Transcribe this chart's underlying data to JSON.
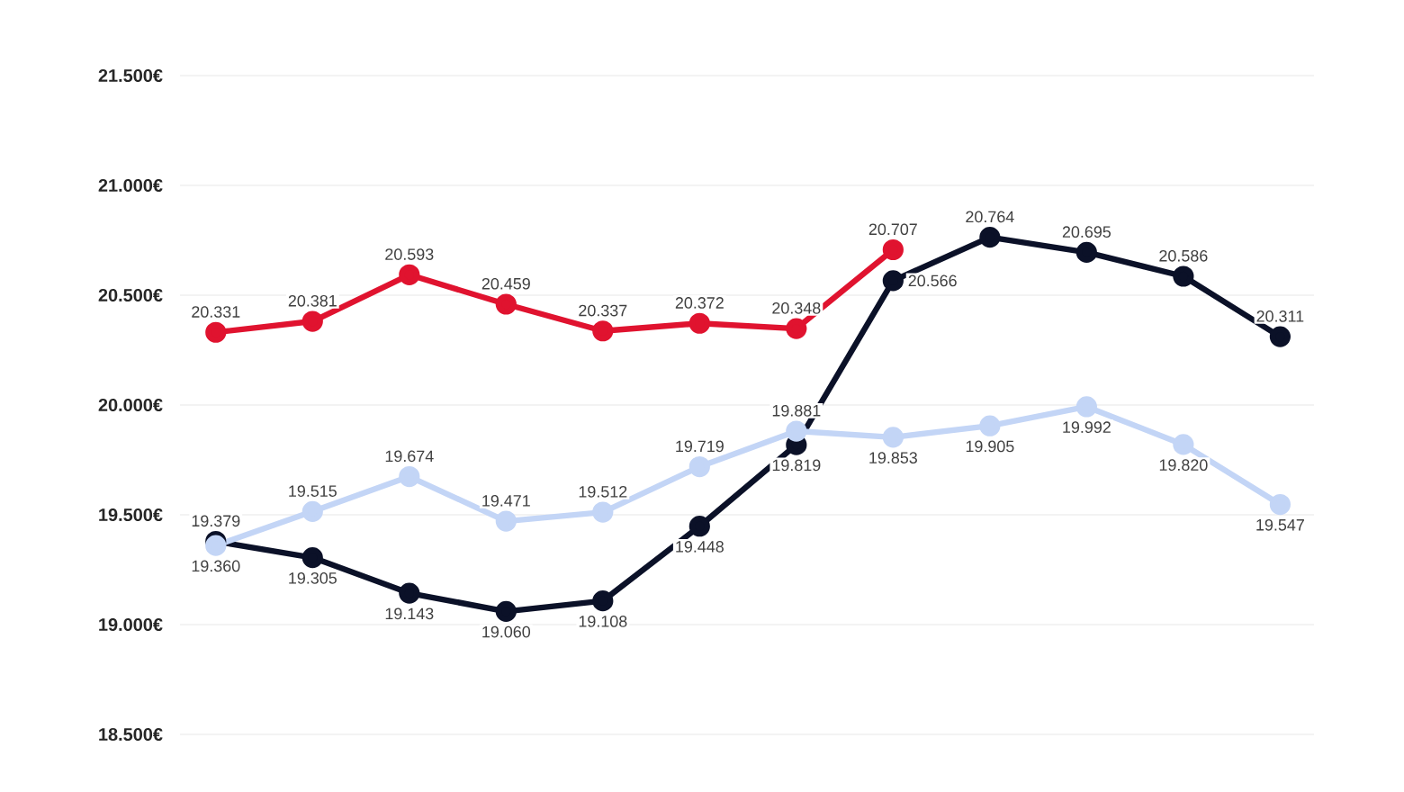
{
  "chart_data": {
    "type": "line",
    "categories": [
      null,
      null,
      null,
      null,
      null,
      null,
      null,
      null,
      null,
      null,
      null,
      null
    ],
    "series": [
      {
        "color": "#e0132f",
        "values": [
          20331,
          20381,
          20593,
          20459,
          20337,
          20372,
          20348,
          20707,
          null,
          null,
          null,
          null
        ],
        "value_labels": [
          "20.331",
          "20.381",
          "20.593",
          "20.459",
          "20.337",
          "20.372",
          "20.348",
          "20.707",
          null,
          null,
          null,
          null
        ]
      },
      {
        "color": "#0b1128",
        "values": [
          19379,
          19305,
          19143,
          19060,
          19108,
          19448,
          19819,
          20566,
          20764,
          20695,
          20586,
          20311
        ],
        "value_labels": [
          "19.379",
          "19.305",
          "19.143",
          "19.060",
          "19.108",
          "19.448",
          "19.819",
          "20.566",
          "20.764",
          "20.695",
          "20.586",
          "20.311"
        ]
      },
      {
        "color": "#c3d5f6",
        "values": [
          19360,
          19515,
          19674,
          19471,
          19512,
          19719,
          19881,
          19853,
          19905,
          19992,
          19820,
          19547
        ],
        "value_labels": [
          "19.360",
          "19.515",
          "19.674",
          "19.471",
          "19.512",
          "19.719",
          "19.881",
          "19.853",
          "19.905",
          "19.992",
          "19.820",
          "19.547"
        ]
      }
    ],
    "ylim": [
      18500,
      21500
    ],
    "yticks": [
      {
        "value": 18500,
        "label": "18.500€"
      },
      {
        "value": 19000,
        "label": "19.000€"
      },
      {
        "value": 19500,
        "label": "19.500€"
      },
      {
        "value": 20000,
        "label": "20.000€"
      },
      {
        "value": 20500,
        "label": "20.500€"
      },
      {
        "value": 21000,
        "label": "21.000€"
      },
      {
        "value": 21500,
        "label": "21.500€"
      }
    ],
    "grid": true,
    "marker": "circle",
    "line_style": "solid",
    "tick_labels": "y"
  }
}
